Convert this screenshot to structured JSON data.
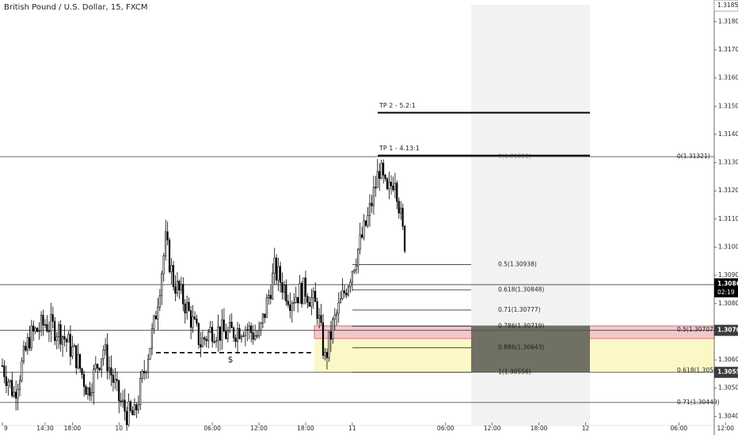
{
  "chart_data": {
    "type": "candlestick",
    "title": "British Pound / U.S. Dollar, 15, FXCM",
    "ylim": [
      1.3037,
      1.3186
    ],
    "price_ticks": [
      {
        "label": "1.31857",
        "y": 1.31857,
        "boxed": "top"
      },
      {
        "label": "1.31800",
        "y": 1.318
      },
      {
        "label": "1.31700",
        "y": 1.317
      },
      {
        "label": "1.31600",
        "y": 1.316
      },
      {
        "label": "1.31500",
        "y": 1.315
      },
      {
        "label": "1.31400",
        "y": 1.314
      },
      {
        "label": "1.31300",
        "y": 1.313
      },
      {
        "label": "1.31200",
        "y": 1.312
      },
      {
        "label": "1.31100",
        "y": 1.311
      },
      {
        "label": "1.31000",
        "y": 1.31
      },
      {
        "label": "1.30900",
        "y": 1.309
      },
      {
        "label": "1.30800",
        "y": 1.308
      },
      {
        "label": "1.30600",
        "y": 1.306
      },
      {
        "label": "1.30500",
        "y": 1.305
      },
      {
        "label": "1.30400",
        "y": 1.304
      }
    ],
    "time_labels": [
      {
        "label": "9",
        "t": 0
      },
      {
        "label": "14:30",
        "t": 22
      },
      {
        "label": "18:00",
        "t": 36
      },
      {
        "label": "10",
        "t": 60
      },
      {
        "label": "06:00",
        "t": 108
      },
      {
        "label": "12:00",
        "t": 132
      },
      {
        "label": "18:00",
        "t": 156
      },
      {
        "label": "11",
        "t": 180
      },
      {
        "label": "06:00",
        "t": 228
      },
      {
        "label": "12:00",
        "t": 252
      },
      {
        "label": "18:00",
        "t": 276
      },
      {
        "label": "12",
        "t": 300
      },
      {
        "label": "06:00",
        "t": 348
      },
      {
        "label": "12:00",
        "t": 372
      }
    ],
    "current_price": {
      "label": "1.30867",
      "y": 1.30867,
      "countdown": "02:19"
    },
    "price_markers": [
      {
        "label": "1.30705",
        "y": 1.30705
      },
      {
        "label": "1.30556",
        "y": 1.30556
      }
    ],
    "horizontal_lines": [
      1.31321,
      1.30867,
      1.30705,
      1.30556,
      1.30449
    ],
    "key_points": [
      {
        "t": 0,
        "price": 1.3058
      },
      {
        "t": 6,
        "price": 1.3048
      },
      {
        "t": 14,
        "price": 1.3068
      },
      {
        "t": 22,
        "price": 1.3073
      },
      {
        "t": 30,
        "price": 1.307
      },
      {
        "t": 38,
        "price": 1.3061
      },
      {
        "t": 44,
        "price": 1.3049
      },
      {
        "t": 52,
        "price": 1.3064
      },
      {
        "t": 60,
        "price": 1.3046
      },
      {
        "t": 64,
        "price": 1.3041
      },
      {
        "t": 68,
        "price": 1.304
      },
      {
        "t": 72,
        "price": 1.3053
      },
      {
        "t": 78,
        "price": 1.3072
      },
      {
        "t": 84,
        "price": 1.3102
      },
      {
        "t": 88,
        "price": 1.3088
      },
      {
        "t": 94,
        "price": 1.308
      },
      {
        "t": 102,
        "price": 1.3066
      },
      {
        "t": 108,
        "price": 1.3071
      },
      {
        "t": 116,
        "price": 1.3069
      },
      {
        "t": 124,
        "price": 1.3072
      },
      {
        "t": 132,
        "price": 1.3068
      },
      {
        "t": 140,
        "price": 1.3092
      },
      {
        "t": 148,
        "price": 1.3082
      },
      {
        "t": 156,
        "price": 1.3085
      },
      {
        "t": 162,
        "price": 1.3078
      },
      {
        "t": 166,
        "price": 1.306
      },
      {
        "t": 170,
        "price": 1.3072
      },
      {
        "t": 176,
        "price": 1.3084
      },
      {
        "t": 182,
        "price": 1.3097
      },
      {
        "t": 188,
        "price": 1.311
      },
      {
        "t": 194,
        "price": 1.3128
      },
      {
        "t": 198,
        "price": 1.3118
      },
      {
        "t": 202,
        "price": 1.3126
      },
      {
        "t": 206,
        "price": 1.3105
      },
      {
        "t": 210,
        "price": 1.3093
      },
      {
        "t": 214,
        "price": 1.3086
      }
    ],
    "fib_left": [
      {
        "label": "0(1.31321)",
        "y": 1.31321
      },
      {
        "label": "0.5(1.30938)",
        "y": 1.30938
      },
      {
        "label": "0.618(1.30848)",
        "y": 1.30848
      },
      {
        "label": "0.71(1.30777)",
        "y": 1.30777
      },
      {
        "label": "0.786(1.30719)",
        "y": 1.30719
      },
      {
        "label": "0.886(1.30643)",
        "y": 1.30643
      },
      {
        "label": "1(1.30556)",
        "y": 1.30556
      }
    ],
    "fib_right": [
      {
        "label": "0(1.31321)",
        "y": 1.31321
      },
      {
        "label": "0.5(1.30707)",
        "y": 1.30707
      },
      {
        "label": "0.618(1.30562)",
        "y": 1.30562
      },
      {
        "label": "0.71(1.30449)",
        "y": 1.30449
      }
    ],
    "targets": [
      {
        "label": "TP 2 - 5.2:1",
        "y": 1.31477
      },
      {
        "label": "TP 1 - 4.13:1",
        "y": 1.31325
      }
    ],
    "zones": {
      "stop_zone": [
        1.30676,
        1.30721
      ],
      "entry_zone": [
        1.30556,
        1.30676
      ],
      "projection": [
        1.3037,
        1.3186
      ]
    },
    "liquidity_marker": {
      "label": "$",
      "y": 1.30626
    },
    "colors": {
      "up": "#ffffff",
      "down": "#000000",
      "stop_zone": "#f4c7cc",
      "entry_zone": "#fbf7c7",
      "projection": "#f2f2f2",
      "overlap": "#707063",
      "label_box": "#3c3c3c"
    }
  }
}
